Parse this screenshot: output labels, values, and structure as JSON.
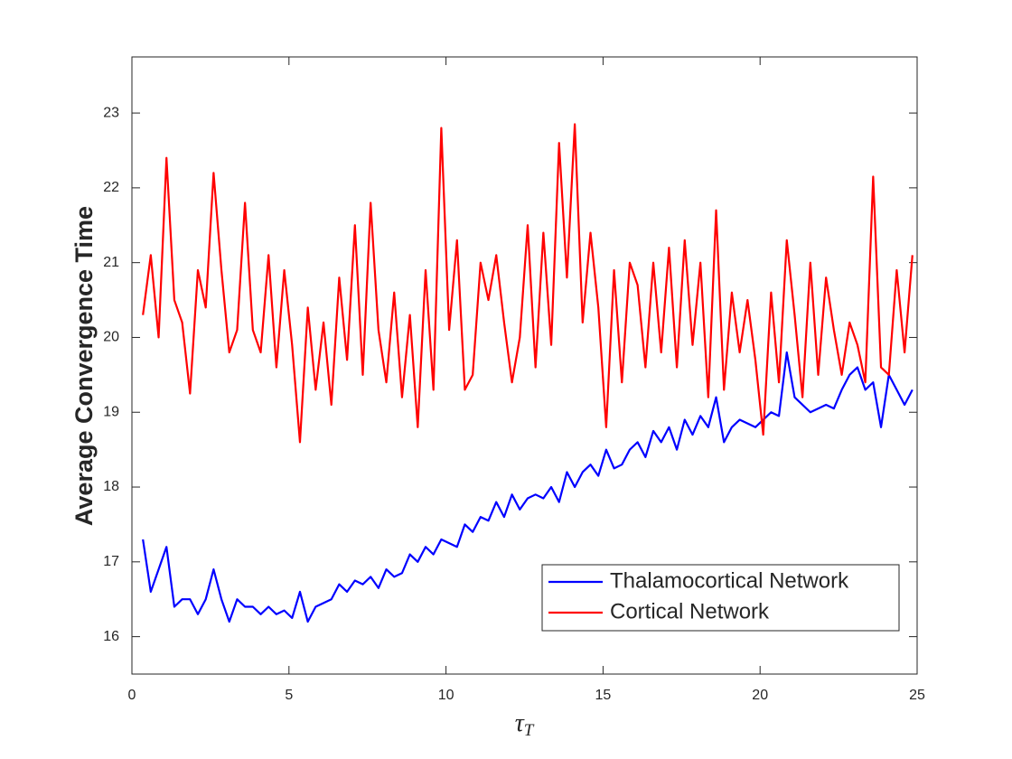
{
  "chart_data": {
    "type": "line",
    "x_label": "τ",
    "x_label_subscript": "T",
    "y_label": "Average Convergence Time",
    "x": [
      0.35,
      0.6,
      0.85,
      1.1,
      1.35,
      1.6,
      1.85,
      2.1,
      2.35,
      2.6,
      2.85,
      3.1,
      3.35,
      3.6,
      3.85,
      4.1,
      4.35,
      4.6,
      4.85,
      5.1,
      5.35,
      5.6,
      5.85,
      6.1,
      6.35,
      6.6,
      6.85,
      7.1,
      7.35,
      7.6,
      7.85,
      8.1,
      8.35,
      8.6,
      8.85,
      9.1,
      9.35,
      9.6,
      9.85,
      10.1,
      10.35,
      10.6,
      10.85,
      11.1,
      11.35,
      11.6,
      11.85,
      12.1,
      12.35,
      12.6,
      12.85,
      13.1,
      13.35,
      13.6,
      13.85,
      14.1,
      14.35,
      14.6,
      14.85,
      15.1,
      15.35,
      15.6,
      15.85,
      16.1,
      16.35,
      16.6,
      16.85,
      17.1,
      17.35,
      17.6,
      17.85,
      18.1,
      18.35,
      18.6,
      18.85,
      19.1,
      19.35,
      19.6,
      19.85,
      20.1,
      20.35,
      20.6,
      20.85,
      21.1,
      21.35,
      21.6,
      21.85,
      22.1,
      22.35,
      22.6,
      22.85,
      23.1,
      23.35,
      23.6,
      23.85,
      24.1,
      24.35,
      24.6,
      24.85
    ],
    "series": [
      {
        "name": "Thalamocortical Network",
        "color": "#0000ff",
        "values": [
          17.3,
          16.6,
          16.9,
          17.2,
          16.4,
          16.5,
          16.5,
          16.3,
          16.5,
          16.9,
          16.5,
          16.2,
          16.5,
          16.4,
          16.4,
          16.3,
          16.4,
          16.3,
          16.35,
          16.25,
          16.6,
          16.2,
          16.4,
          16.45,
          16.5,
          16.7,
          16.6,
          16.75,
          16.7,
          16.8,
          16.65,
          16.9,
          16.8,
          16.85,
          17.1,
          17.0,
          17.2,
          17.1,
          17.3,
          17.25,
          17.2,
          17.5,
          17.4,
          17.6,
          17.55,
          17.8,
          17.6,
          17.9,
          17.7,
          17.85,
          17.9,
          17.85,
          18.0,
          17.8,
          18.2,
          18.0,
          18.2,
          18.3,
          18.15,
          18.5,
          18.25,
          18.3,
          18.5,
          18.6,
          18.4,
          18.75,
          18.6,
          18.8,
          18.5,
          18.9,
          18.7,
          18.95,
          18.8,
          19.2,
          18.6,
          18.8,
          18.9,
          18.85,
          18.8,
          18.9,
          19.0,
          18.95,
          19.8,
          19.2,
          19.1,
          19.0,
          19.05,
          19.1,
          19.05,
          19.3,
          19.5,
          19.6,
          19.3,
          19.4,
          18.8,
          19.5,
          19.3,
          19.1,
          19.3
        ]
      },
      {
        "name": "Cortical Network",
        "color": "#ff0000",
        "values": [
          20.3,
          21.1,
          20.0,
          22.4,
          20.5,
          20.2,
          19.25,
          20.9,
          20.4,
          22.2,
          20.9,
          19.8,
          20.1,
          21.8,
          20.1,
          19.8,
          21.1,
          19.6,
          20.9,
          19.9,
          18.6,
          20.4,
          19.3,
          20.2,
          19.1,
          20.8,
          19.7,
          21.5,
          19.5,
          21.8,
          20.1,
          19.4,
          20.6,
          19.2,
          20.3,
          18.8,
          20.9,
          19.3,
          22.8,
          20.1,
          21.3,
          19.3,
          19.5,
          21.0,
          20.5,
          21.1,
          20.2,
          19.4,
          20.0,
          21.5,
          19.6,
          21.4,
          19.9,
          22.6,
          20.8,
          22.85,
          20.2,
          21.4,
          20.4,
          18.8,
          20.9,
          19.4,
          21.0,
          20.7,
          19.6,
          21.0,
          19.8,
          21.2,
          19.6,
          21.3,
          19.9,
          21.0,
          19.2,
          21.7,
          19.3,
          20.6,
          19.8,
          20.5,
          19.7,
          18.7,
          20.6,
          19.4,
          21.3,
          20.3,
          19.2,
          21.0,
          19.5,
          20.8,
          20.1,
          19.5,
          20.2,
          19.9,
          19.4,
          22.15,
          19.6,
          19.5,
          20.9,
          19.8,
          21.1
        ]
      }
    ],
    "xlim": [
      0,
      25
    ],
    "xticks": [
      0,
      5,
      10,
      15,
      20,
      25
    ],
    "ylim": [
      15.5,
      23.75
    ],
    "yticks": [
      16,
      17,
      18,
      19,
      20,
      21,
      22,
      23
    ],
    "legend": "lower right",
    "grid": false
  }
}
